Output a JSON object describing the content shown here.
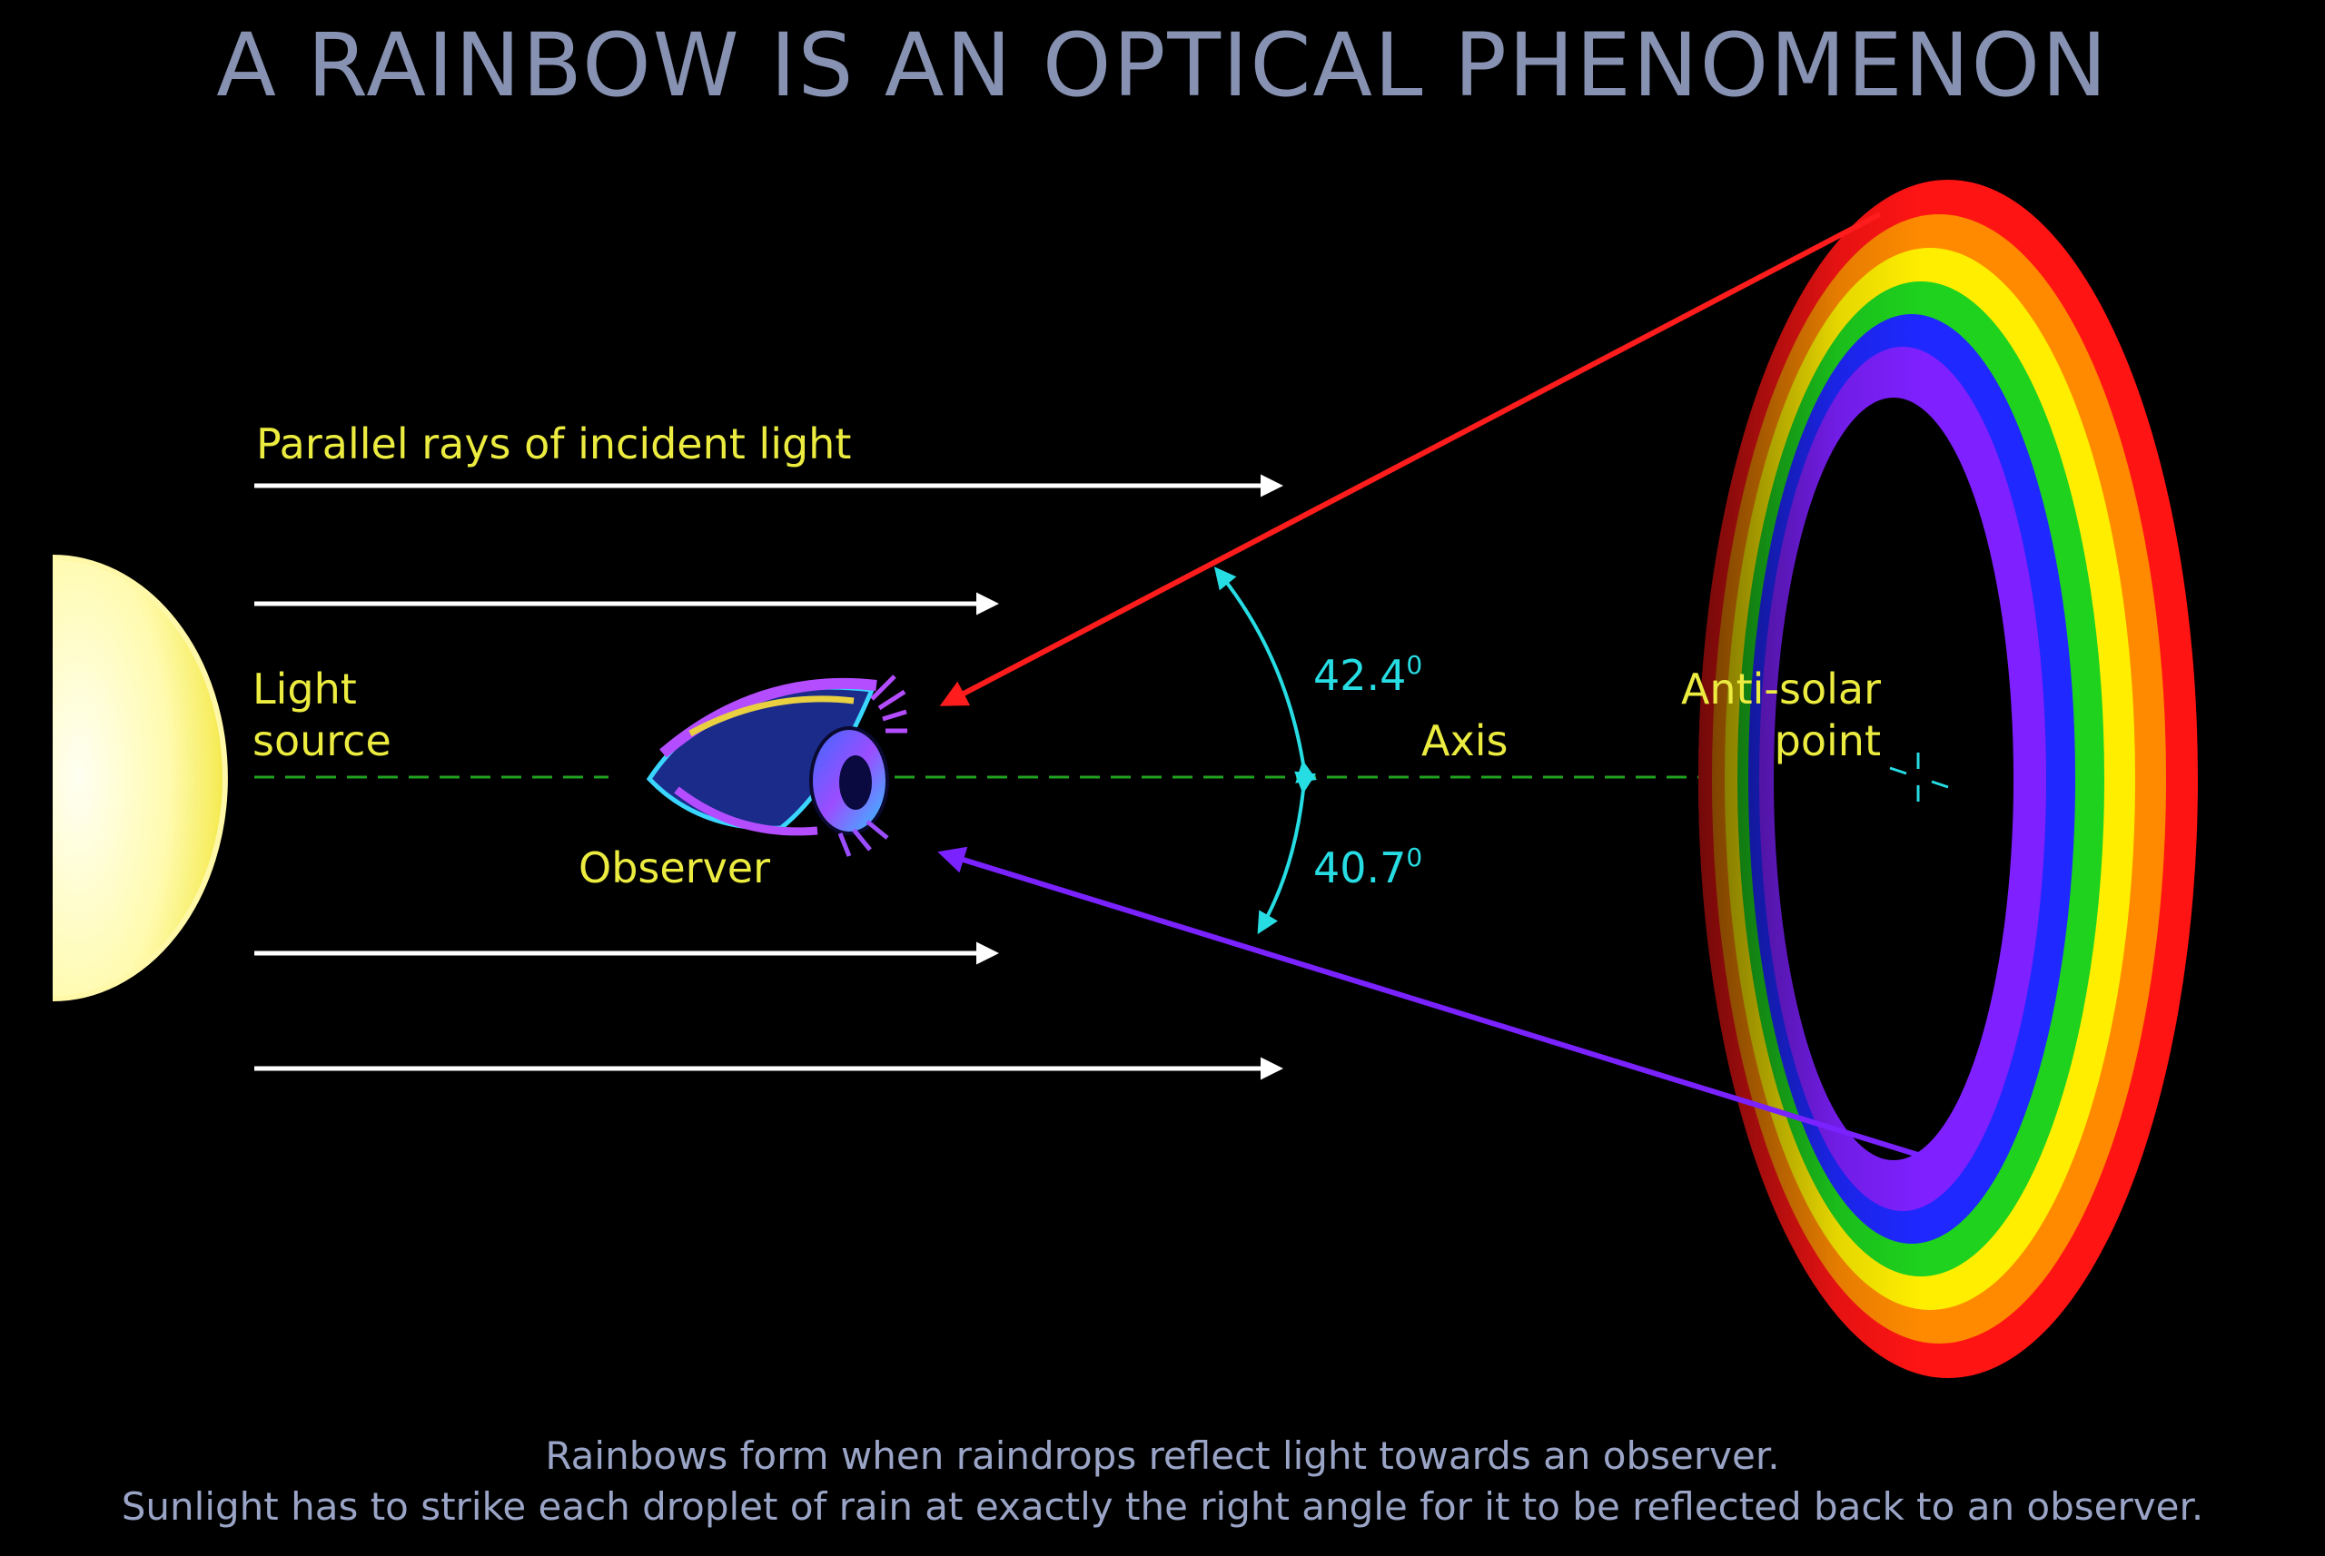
{
  "title": "A RAINBOW IS AN OPTICAL PHENOMENON",
  "labels": {
    "rays": "Parallel rays of incident light",
    "light_source_line1": "Light",
    "light_source_line2": "source",
    "observer": "Observer",
    "axis": "Axis",
    "anti_solar_line1": "Anti-solar",
    "anti_solar_line2": "point",
    "angle_top": "42.4",
    "angle_top_sup": "0",
    "angle_bottom": "40.7",
    "angle_bottom_sup": "0"
  },
  "caption": {
    "line1": "Rainbows form when raindrops reflect light towards an observer.",
    "line2": "Sunlight has to strike each droplet of rain at exactly the right angle for it to be reflected back to an observer."
  },
  "colors": {
    "background": "#000000",
    "title": "#8792b2",
    "label_yellow": "#ecec40",
    "label_cyan": "#27dde4",
    "axis_dash": "#1fa21f",
    "red_ray": "#ff1c1c",
    "violet_ray": "#7a22ff",
    "rainbow": [
      "#ff1414",
      "#ff8a00",
      "#ffee00",
      "#1ed21e",
      "#1e28ff",
      "#7e20ff"
    ]
  }
}
